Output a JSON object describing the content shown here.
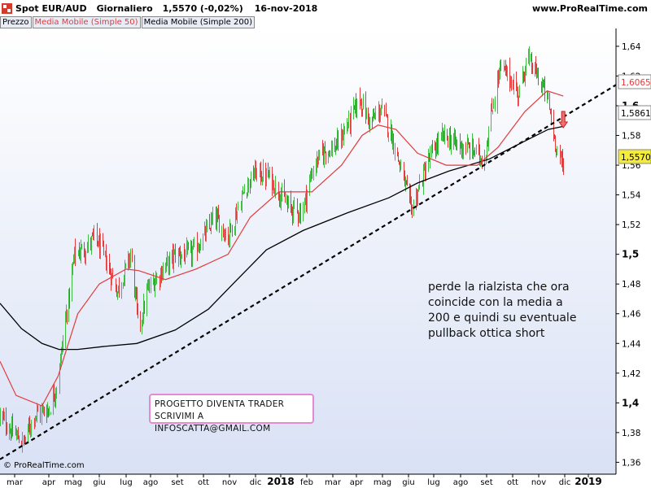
{
  "header": {
    "instrument": "Spot EUR/AUD",
    "timeframe": "Giornaliero",
    "last_price_change": "1,5570 (-0,02%)",
    "date": "16-nov-2018",
    "site": "www.ProRealTime.com"
  },
  "legend": {
    "price": "Prezzo",
    "ma50": "Media Mobile (Simple 50)",
    "ma200": "Media Mobile (Simple 200)"
  },
  "annotation": "perde la rialzista che ora coincide con la media a 200 e quindi su eventuale pullback ottica short",
  "promo": {
    "line1": "PROGETTO DIVENTA TRADER",
    "line2": "SCRIVIMI A INFOSCATTA@GMAIL.COM"
  },
  "copyright": "© ProRealTime.com",
  "colors": {
    "background_top": "#ffffff",
    "background_bottom": "#d9e1f5",
    "bullish": "#3fbf3f",
    "bearish": "#e23b3b",
    "ma50": "#e23b3b",
    "ma200": "#000000",
    "trendline": "#000000",
    "promo_border": "#e58ad0"
  },
  "chart_data": {
    "type": "candlestick",
    "x_axis": {
      "ticks": [
        "mar",
        "apr",
        "mag",
        "giu",
        "lug",
        "ago",
        "set",
        "ott",
        "nov",
        "dic",
        "2018",
        "feb",
        "mar",
        "apr",
        "mag",
        "giu",
        "lug",
        "ago",
        "set",
        "ott",
        "nov",
        "dic",
        "2019"
      ],
      "range": [
        "2017-02-24",
        "2019-01-14"
      ]
    },
    "y_axis": {
      "ticks": [
        "1,36",
        "1,38",
        "1,4",
        "1,42",
        "1,44",
        "1,46",
        "1,48",
        "1,5",
        "1,52",
        "1,54",
        "1,56",
        "1,58",
        "1,6",
        "1,62",
        "1,64"
      ],
      "range": [
        1.352,
        1.652
      ],
      "bold_ticks": [
        "1,4",
        "1,5",
        "1,6"
      ]
    },
    "price_labels": [
      {
        "series": "ma50",
        "label": "1,6065"
      },
      {
        "series": "ma200",
        "label": "1,5861"
      },
      {
        "series": "price",
        "label": "1,5570"
      }
    ],
    "price_path": [
      {
        "date": "2017-02-24",
        "close": 1.391
      },
      {
        "date": "2017-03-10",
        "close": 1.38
      },
      {
        "date": "2017-03-22",
        "close": 1.373
      },
      {
        "date": "2017-04-03",
        "close": 1.392
      },
      {
        "date": "2017-04-20",
        "close": 1.396
      },
      {
        "date": "2017-04-28",
        "close": 1.412
      },
      {
        "date": "2017-05-08",
        "close": 1.455
      },
      {
        "date": "2017-05-18",
        "close": 1.5
      },
      {
        "date": "2017-06-01",
        "close": 1.505
      },
      {
        "date": "2017-06-10",
        "close": 1.512
      },
      {
        "date": "2017-06-22",
        "close": 1.496
      },
      {
        "date": "2017-07-05",
        "close": 1.475
      },
      {
        "date": "2017-07-20",
        "close": 1.5
      },
      {
        "date": "2017-07-29",
        "close": 1.45
      },
      {
        "date": "2017-08-08",
        "close": 1.476
      },
      {
        "date": "2017-08-20",
        "close": 1.486
      },
      {
        "date": "2017-09-08",
        "close": 1.5
      },
      {
        "date": "2017-09-25",
        "close": 1.5
      },
      {
        "date": "2017-10-08",
        "close": 1.51
      },
      {
        "date": "2017-10-22",
        "close": 1.525
      },
      {
        "date": "2017-11-06",
        "close": 1.512
      },
      {
        "date": "2017-11-25",
        "close": 1.545
      },
      {
        "date": "2017-12-06",
        "close": 1.555
      },
      {
        "date": "2017-12-22",
        "close": 1.552
      },
      {
        "date": "2017-12-30",
        "close": 1.545
      },
      {
        "date": "2018-01-12",
        "close": 1.532
      },
      {
        "date": "2018-01-27",
        "close": 1.528
      },
      {
        "date": "2018-02-10",
        "close": 1.56
      },
      {
        "date": "2018-02-22",
        "close": 1.57
      },
      {
        "date": "2018-03-06",
        "close": 1.572
      },
      {
        "date": "2018-03-22",
        "close": 1.59
      },
      {
        "date": "2018-04-02",
        "close": 1.605
      },
      {
        "date": "2018-04-14",
        "close": 1.588
      },
      {
        "date": "2018-04-26",
        "close": 1.598
      },
      {
        "date": "2018-05-08",
        "close": 1.58
      },
      {
        "date": "2018-05-19",
        "close": 1.555
      },
      {
        "date": "2018-05-30",
        "close": 1.53
      },
      {
        "date": "2018-06-12",
        "close": 1.553
      },
      {
        "date": "2018-06-23",
        "close": 1.57
      },
      {
        "date": "2018-07-06",
        "close": 1.58
      },
      {
        "date": "2018-07-17",
        "close": 1.575
      },
      {
        "date": "2018-07-28",
        "close": 1.572
      },
      {
        "date": "2018-08-08",
        "close": 1.57
      },
      {
        "date": "2018-08-19",
        "close": 1.563
      },
      {
        "date": "2018-08-28",
        "close": 1.597
      },
      {
        "date": "2018-09-06",
        "close": 1.625
      },
      {
        "date": "2018-09-16",
        "close": 1.62
      },
      {
        "date": "2018-09-27",
        "close": 1.608
      },
      {
        "date": "2018-10-06",
        "close": 1.632
      },
      {
        "date": "2018-10-18",
        "close": 1.62
      },
      {
        "date": "2018-10-29",
        "close": 1.605
      },
      {
        "date": "2018-11-06",
        "close": 1.578
      },
      {
        "date": "2018-11-16",
        "close": 1.557
      }
    ],
    "ma50": [
      {
        "date": "2017-02-24",
        "v": 1.428
      },
      {
        "date": "2017-03-14",
        "v": 1.405
      },
      {
        "date": "2017-04-12",
        "v": 1.398
      },
      {
        "date": "2017-04-30",
        "v": 1.418
      },
      {
        "date": "2017-05-22",
        "v": 1.46
      },
      {
        "date": "2017-06-15",
        "v": 1.48
      },
      {
        "date": "2017-07-15",
        "v": 1.49
      },
      {
        "date": "2017-07-29",
        "v": 1.489
      },
      {
        "date": "2017-08-28",
        "v": 1.483
      },
      {
        "date": "2017-10-01",
        "v": 1.49
      },
      {
        "date": "2017-11-06",
        "v": 1.5
      },
      {
        "date": "2017-12-01",
        "v": 1.525
      },
      {
        "date": "2018-01-02",
        "v": 1.542
      },
      {
        "date": "2018-02-08",
        "v": 1.542
      },
      {
        "date": "2018-03-13",
        "v": 1.56
      },
      {
        "date": "2018-04-05",
        "v": 1.58
      },
      {
        "date": "2018-04-23",
        "v": 1.587
      },
      {
        "date": "2018-05-13",
        "v": 1.584
      },
      {
        "date": "2018-06-06",
        "v": 1.568
      },
      {
        "date": "2018-07-08",
        "v": 1.56
      },
      {
        "date": "2018-08-12",
        "v": 1.56
      },
      {
        "date": "2018-09-04",
        "v": 1.572
      },
      {
        "date": "2018-10-04",
        "v": 1.596
      },
      {
        "date": "2018-10-29",
        "v": 1.61
      },
      {
        "date": "2018-11-16",
        "v": 1.6065
      }
    ],
    "ma200": [
      {
        "date": "2017-02-24",
        "v": 1.467
      },
      {
        "date": "2017-03-20",
        "v": 1.45
      },
      {
        "date": "2017-04-12",
        "v": 1.44
      },
      {
        "date": "2017-05-01",
        "v": 1.436
      },
      {
        "date": "2017-05-22",
        "v": 1.436
      },
      {
        "date": "2017-06-21",
        "v": 1.438
      },
      {
        "date": "2017-07-27",
        "v": 1.44
      },
      {
        "date": "2017-09-08",
        "v": 1.449
      },
      {
        "date": "2017-10-15",
        "v": 1.463
      },
      {
        "date": "2017-11-13",
        "v": 1.481
      },
      {
        "date": "2017-12-19",
        "v": 1.503
      },
      {
        "date": "2018-01-29",
        "v": 1.516
      },
      {
        "date": "2018-03-20",
        "v": 1.528
      },
      {
        "date": "2018-05-05",
        "v": 1.538
      },
      {
        "date": "2018-06-06",
        "v": 1.548
      },
      {
        "date": "2018-07-11",
        "v": 1.556
      },
      {
        "date": "2018-08-25",
        "v": 1.564
      },
      {
        "date": "2018-09-30",
        "v": 1.575
      },
      {
        "date": "2018-10-30",
        "v": 1.584
      },
      {
        "date": "2018-11-16",
        "v": 1.5861
      }
    ],
    "trendline": [
      {
        "date": "2017-02-24",
        "v": 1.362
      },
      {
        "date": "2019-01-14",
        "v": 1.614
      }
    ],
    "signal_arrow": {
      "direction": "down",
      "date": "2018-11-16"
    },
    "grid": false,
    "legend_position": "top-left"
  }
}
